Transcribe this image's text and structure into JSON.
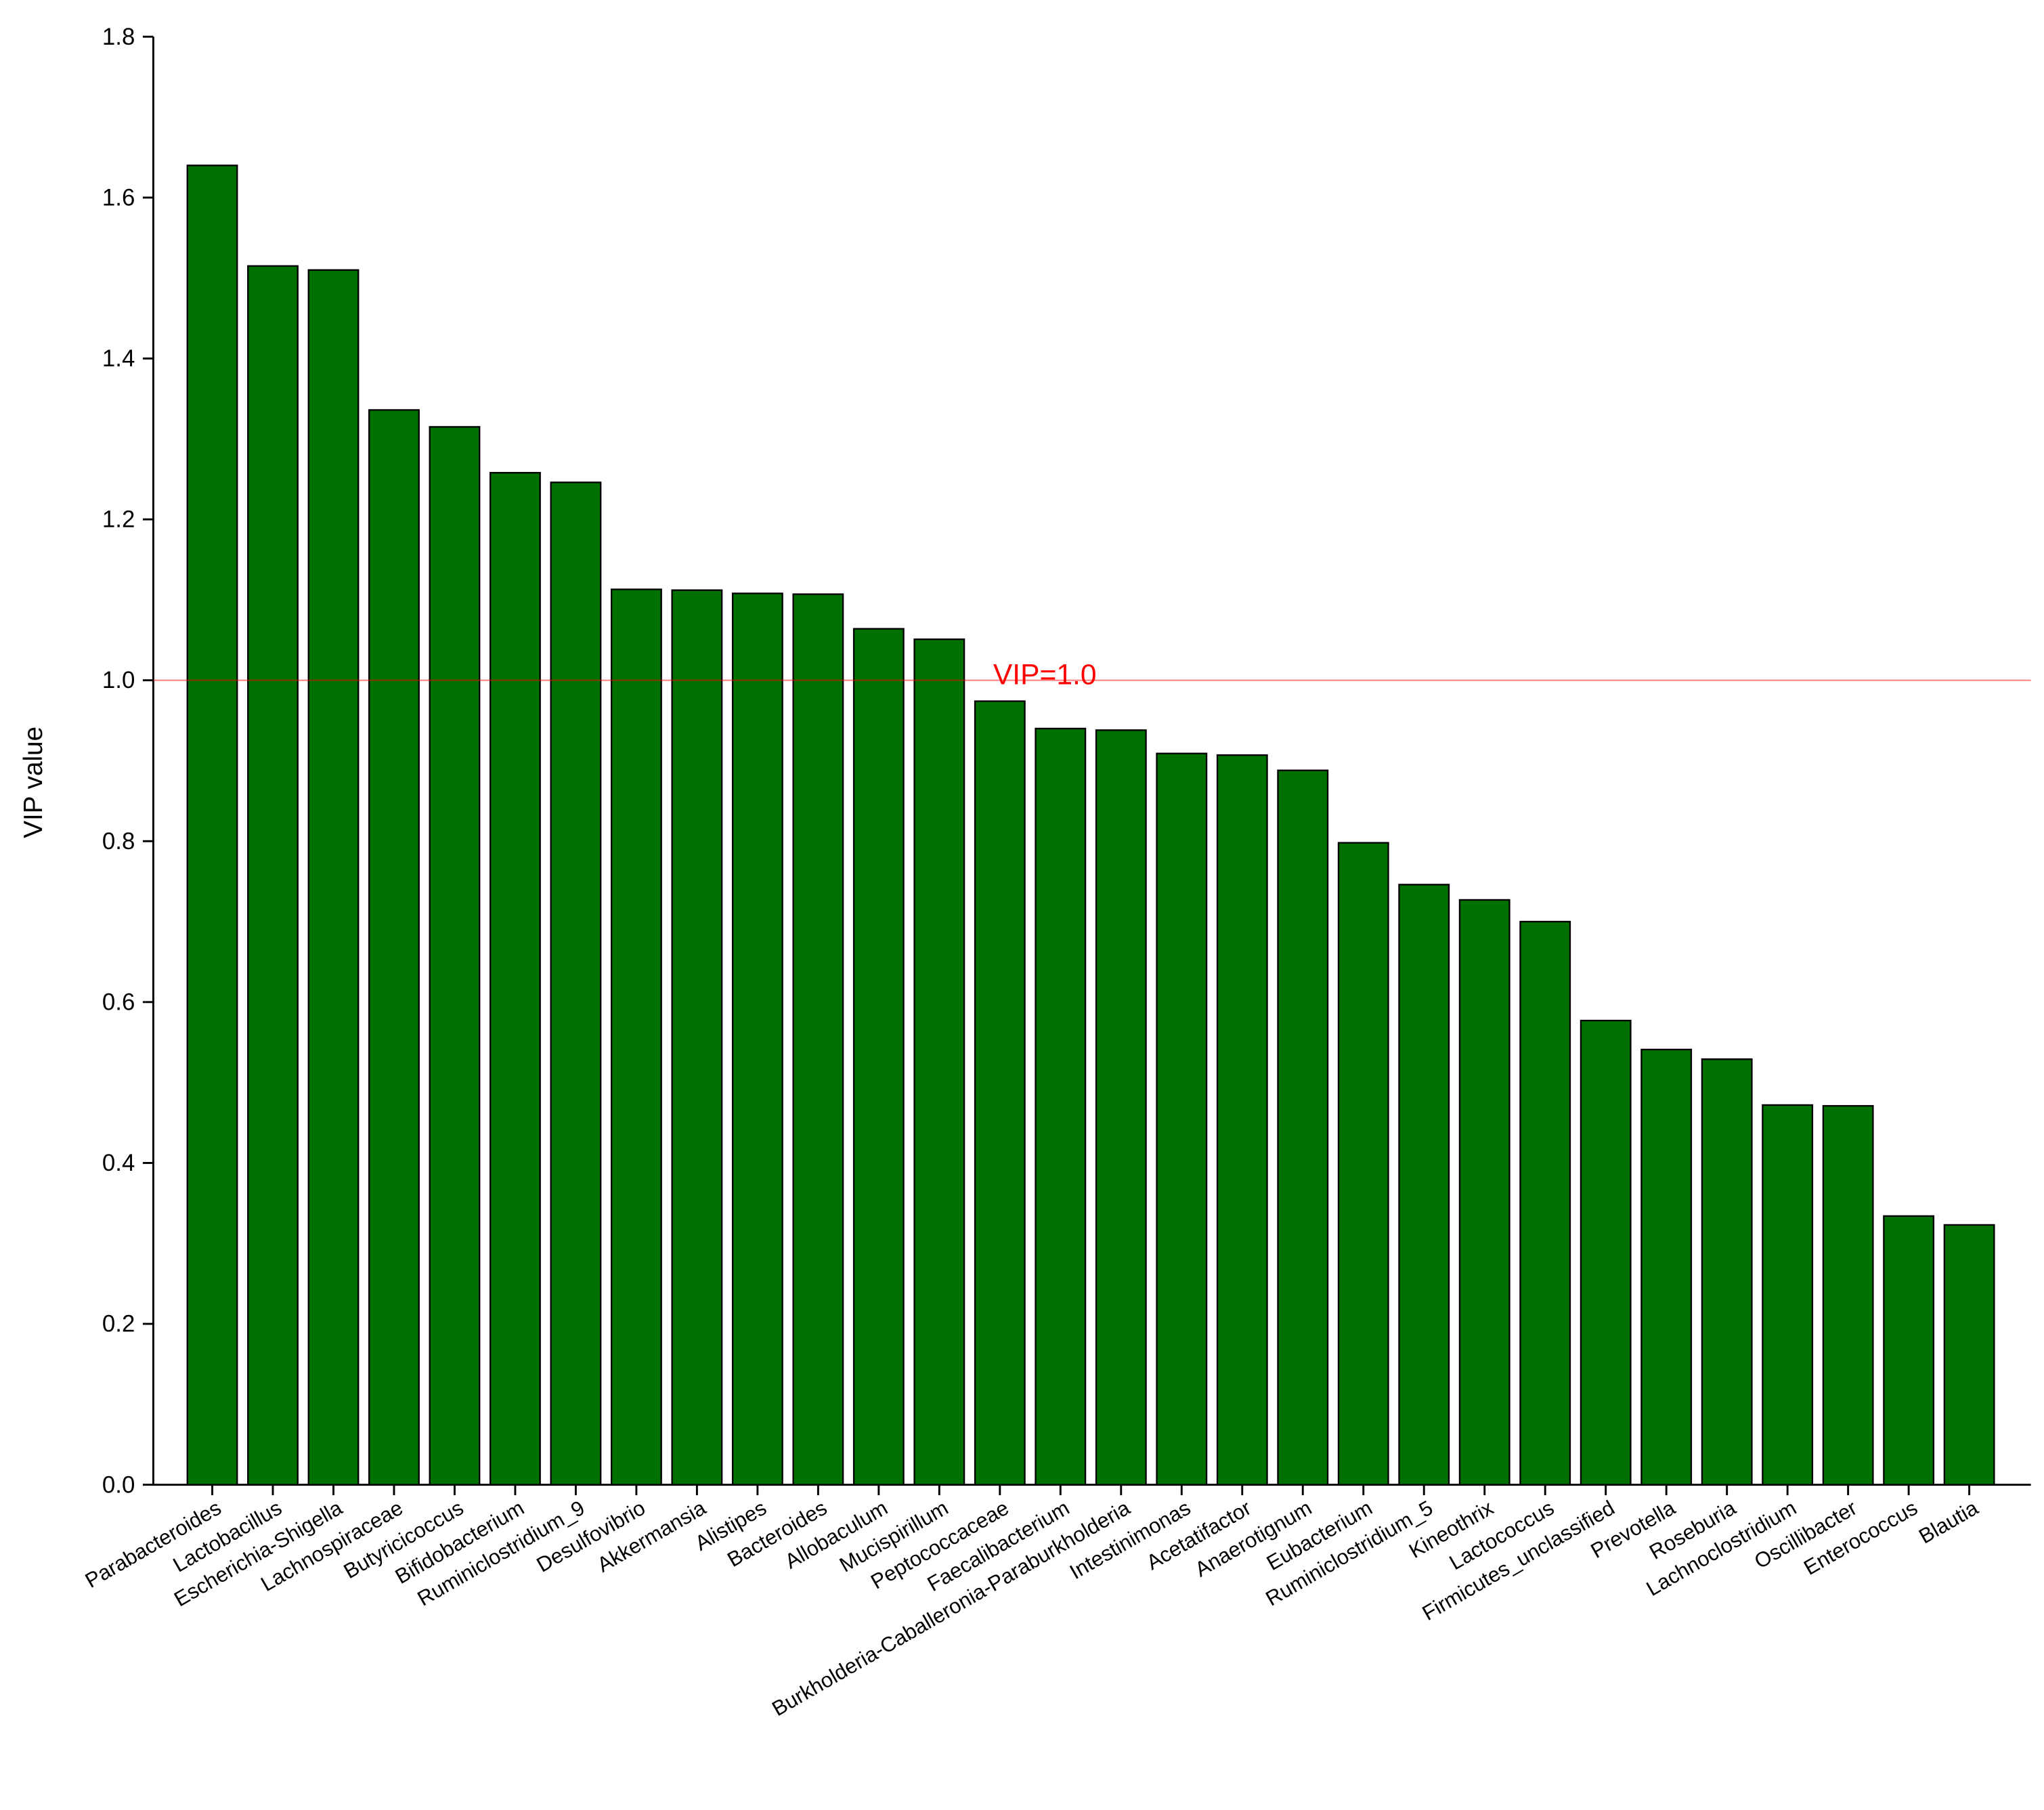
{
  "chart_data": {
    "type": "bar",
    "y_label": "VIP value",
    "categories": [
      "Parabacteroides",
      "Lactobacillus",
      "Escherichia-Shigella",
      "Lachnospiraceae",
      "Butyricicoccus",
      "Bifidobacterium",
      "Ruminiclostridium_9",
      "Desulfovibrio",
      "Akkermansia",
      "Alistipes",
      "Bacteroides",
      "Allobaculum",
      "Mucispirillum",
      "Peptococcaceae",
      "Faecalibacterium",
      "Burkholderia-Caballeronia-Paraburkholderia",
      "Intestinimonas",
      "Acetatifactor",
      "Anaerotignum",
      "Eubacterium",
      "Ruminiclostridium_5",
      "Kineothrix",
      "Lactococcus",
      "Firmicutes_unclassified",
      "Prevotella",
      "Roseburia",
      "Lachnoclostridium",
      "Oscillibacter",
      "Enterococcus",
      "Blautia"
    ],
    "values": [
      1.64,
      1.515,
      1.51,
      1.336,
      1.315,
      1.258,
      1.246,
      1.113,
      1.112,
      1.108,
      1.107,
      1.064,
      1.051,
      0.974,
      0.94,
      0.938,
      0.909,
      0.907,
      0.888,
      0.798,
      0.746,
      0.727,
      0.7,
      0.577,
      0.541,
      0.529,
      0.472,
      0.471,
      0.334,
      0.323
    ],
    "color": "#007000",
    "ylim": [
      0,
      1.8
    ],
    "yticks": [
      {
        "value": 0,
        "label": "0.0"
      },
      0.2,
      0.4,
      0.6,
      0.8,
      {
        "value": 1,
        "label": "1.0"
      },
      1.2,
      1.4,
      1.6,
      1.8
    ],
    "grid": false,
    "reference_line": {
      "value": 1,
      "label": "VIP=1.0",
      "color": "#ff0000"
    }
  }
}
